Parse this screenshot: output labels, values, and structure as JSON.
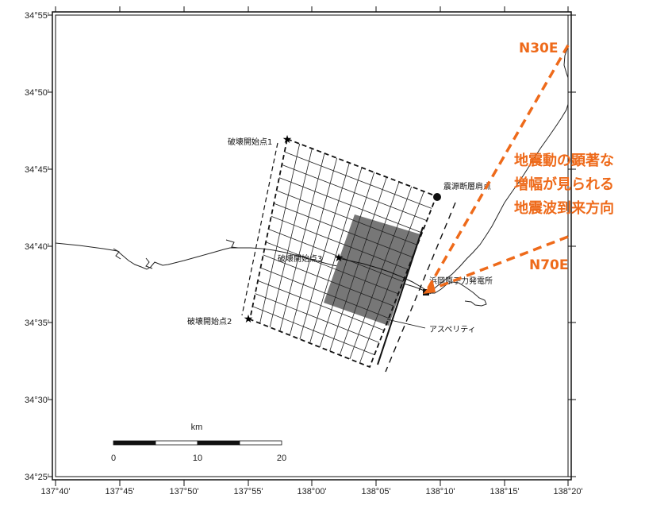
{
  "colors": {
    "accent": "#ee6a1a",
    "asperity": "#777777",
    "line": "#111111"
  },
  "axes": {
    "latitude_ticks": [
      "34°55'",
      "34°50'",
      "34°45'",
      "34°40'",
      "34°35'",
      "34°30'",
      "34°25'"
    ],
    "longitude_ticks": [
      "137°40'",
      "137°45'",
      "137°50'",
      "137°55'",
      "138°00'",
      "138°05'",
      "138°10'",
      "138°15'",
      "138°20'"
    ]
  },
  "labels": {
    "rupture_start_1": "破壊開始点1",
    "rupture_start_2": "破壊開始点2",
    "rupture_start_3": "破壊開始点3",
    "fault_top_point": "震源断層肩点",
    "plant": "浜岡原子力発電所",
    "asperity": "アスペリティ"
  },
  "annotation": {
    "direction_1": "N30E",
    "direction_2": "N70E",
    "text_lines": [
      "地震動の顕著な",
      "増幅が見られる",
      "地震波到来方向"
    ]
  },
  "scale_bar": {
    "unit": "km",
    "ticks": [
      "0",
      "10",
      "20"
    ]
  }
}
